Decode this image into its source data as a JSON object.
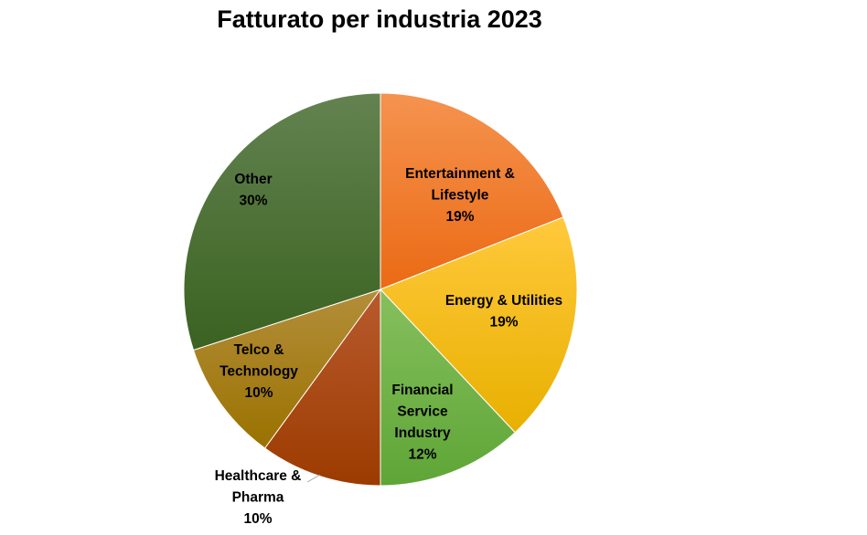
{
  "chart_data": {
    "type": "pie",
    "title": "Fatturato per industria 2023",
    "slices": [
      {
        "label": "Entertainment & Lifestyle",
        "lines": [
          "Entertainment &",
          "Lifestyle"
        ],
        "value": 19,
        "pct_label": "19%",
        "color": "#F07F2C",
        "color_light": "#F5934F",
        "color_dark": "#EB6A14"
      },
      {
        "label": "Energy & Utilities",
        "lines": [
          "Energy & Utilities"
        ],
        "value": 19,
        "pct_label": "19%",
        "color": "#FFC000",
        "color_light": "#FFC93C",
        "color_dark": "#E8B000"
      },
      {
        "label": "Financial Service Industry",
        "lines": [
          "Financial",
          "Service",
          "Industry"
        ],
        "value": 12,
        "pct_label": "12%",
        "color": "#70AD47",
        "color_light": "#86C05E",
        "color_dark": "#5EA536"
      },
      {
        "label": "Healthcare & Pharma",
        "lines": [
          "Healthcare &",
          "Pharma"
        ],
        "value": 10,
        "pct_label": "10%",
        "color": "#A94818",
        "color_light": "#B85A2E",
        "color_dark": "#9C3B00"
      },
      {
        "label": "Telco & Technology",
        "lines": [
          "Telco &",
          "Technology"
        ],
        "value": 10,
        "pct_label": "10%",
        "color": "#A77E10",
        "color_light": "#B38E3A",
        "color_dark": "#9A7200"
      },
      {
        "label": "Other",
        "lines": [
          "Other"
        ],
        "value": 30,
        "pct_label": "30%",
        "color": "#4A7230",
        "color_light": "#638250",
        "color_dark": "#3A6220"
      }
    ]
  }
}
